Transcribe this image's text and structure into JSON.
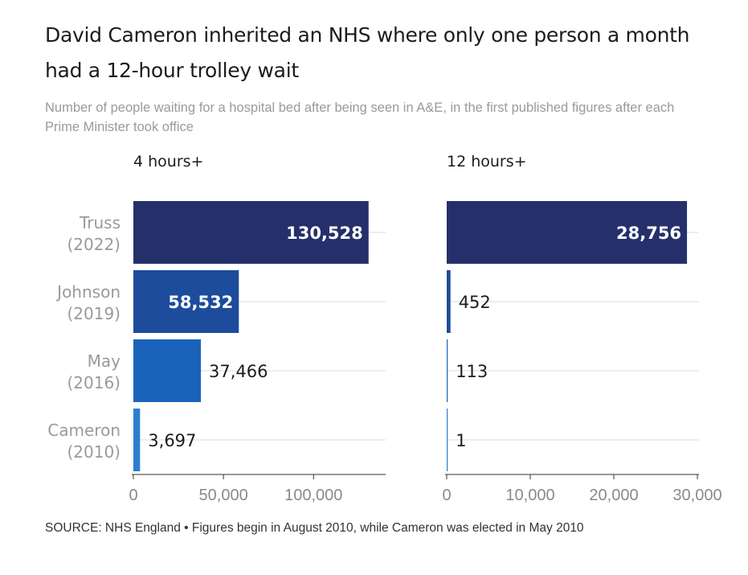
{
  "title": "David Cameron inherited an NHS where only one person a month had a 12-hour trolley wait",
  "subtitle": "Number of people waiting for a hospital bed after being seen in A&E, in the first published figures after each Prime Minister took office",
  "source": "SOURCE: NHS England • Figures begin in August 2010, while Cameron was elected in May 2010",
  "chart_data": [
    {
      "type": "bar",
      "orientation": "horizontal",
      "title": "4 hours+",
      "categories": [
        [
          "Truss",
          "(2022)"
        ],
        [
          "Johnson",
          "(2019)"
        ],
        [
          "May",
          "(2016)"
        ],
        [
          "Cameron",
          "(2010)"
        ]
      ],
      "values": [
        130528,
        58532,
        37466,
        3697
      ],
      "value_labels": [
        "130,528",
        "58,532",
        "37,466",
        "3,697"
      ],
      "colors": [
        "#25306b",
        "#1d4c9c",
        "#1a63bb",
        "#2a7ed0"
      ],
      "xlim": [
        0,
        140000
      ],
      "ticks": [
        0,
        50000,
        100000
      ],
      "tick_labels": [
        "0",
        "50,000",
        "100,000"
      ],
      "grid": true
    },
    {
      "type": "bar",
      "orientation": "horizontal",
      "title": "12 hours+",
      "categories": [
        [
          "Truss",
          "(2022)"
        ],
        [
          "Johnson",
          "(2019)"
        ],
        [
          "May",
          "(2016)"
        ],
        [
          "Cameron",
          "(2010)"
        ]
      ],
      "values": [
        28756,
        452,
        113,
        1
      ],
      "value_labels": [
        "28,756",
        "452",
        "113",
        "1"
      ],
      "colors": [
        "#25306b",
        "#1d4c9c",
        "#1a63bb",
        "#2a7ed0"
      ],
      "xlim": [
        0,
        30000
      ],
      "ticks": [
        0,
        10000,
        20000,
        30000
      ],
      "tick_labels": [
        "0",
        "10,000",
        "20,000",
        "30,000"
      ],
      "grid": true
    }
  ]
}
